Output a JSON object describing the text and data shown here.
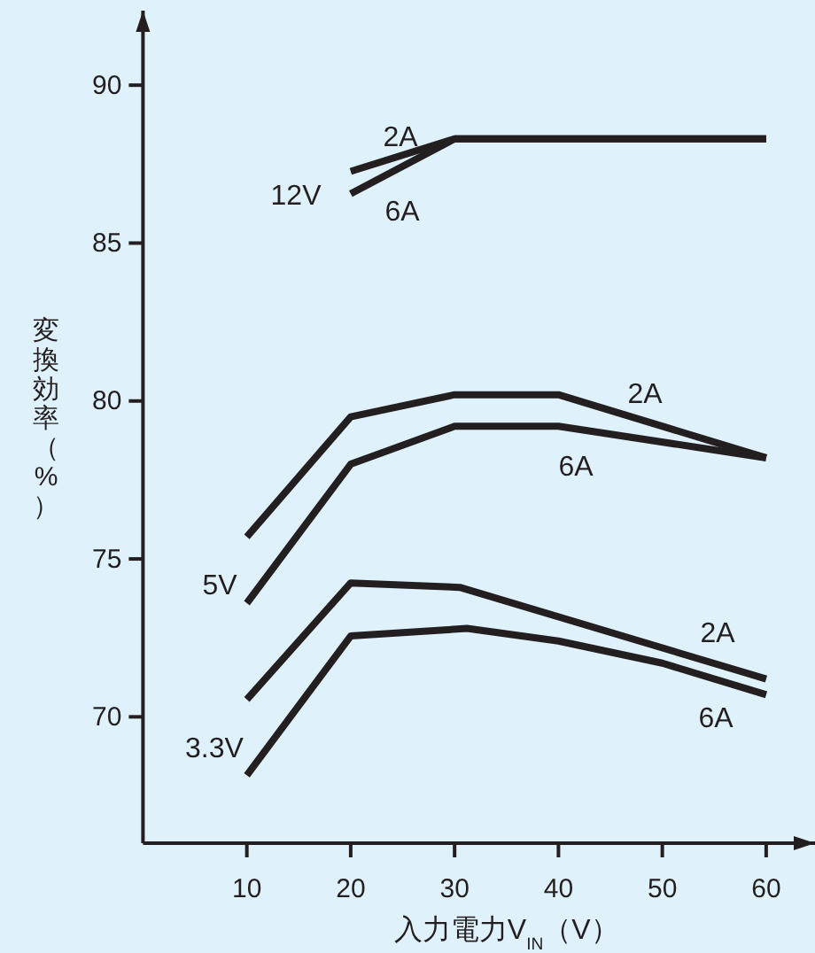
{
  "chart_data": {
    "type": "line",
    "xlabel": "入力電力V$_{IN}$（V）",
    "ylabel": "変換効率（%）",
    "xlim": [
      0,
      64.7
    ],
    "ylim": [
      66,
      92.36
    ],
    "xticks": [
      10,
      20,
      30,
      40,
      50,
      60
    ],
    "yticks": [
      70,
      75,
      80,
      85,
      90
    ],
    "grid": false,
    "marker": "none",
    "line_style": "solid",
    "series": [
      {
        "color": "#231f20",
        "x": [
          20,
          30,
          60
        ],
        "values": [
          87.27,
          88.3,
          88.3
        ]
      },
      {
        "color": "#231f20",
        "x": [
          20,
          30,
          60
        ],
        "values": [
          86.56,
          88.3,
          88.3
        ]
      },
      {
        "color": "#231f20",
        "x": [
          10,
          20,
          30,
          40,
          60
        ],
        "values": [
          75.7,
          79.5,
          80.2,
          80.2,
          78.2
        ]
      },
      {
        "color": "#231f20",
        "x": [
          10,
          20,
          30,
          40,
          60
        ],
        "values": [
          73.6,
          78.0,
          79.2,
          79.2,
          78.2
        ]
      },
      {
        "color": "#231f20",
        "x": [
          10,
          20,
          30.5,
          60
        ],
        "values": [
          70.55,
          74.24,
          74.1,
          71.2
        ]
      },
      {
        "color": "#231f20",
        "x": [
          10,
          20,
          31.2,
          40,
          50,
          60
        ],
        "values": [
          68.15,
          72.56,
          72.8,
          72.4,
          71.7,
          70.7
        ]
      }
    ],
    "annotations": [
      "12V",
      "2A",
      "6A",
      "5V",
      "2A",
      "6A",
      "3.3V",
      "2A",
      "6A"
    ]
  }
}
